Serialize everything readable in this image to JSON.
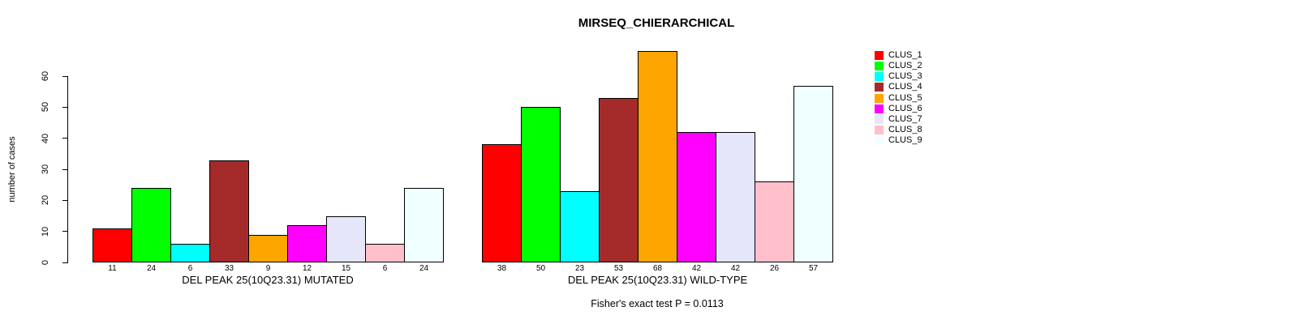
{
  "chart_data": {
    "type": "bar",
    "title": "MIRSEQ_CHIERARCHICAL",
    "ylabel": "number of cases",
    "yticks": [
      0,
      10,
      20,
      30,
      40,
      50,
      60
    ],
    "ylim": [
      0,
      69
    ],
    "grid": false,
    "legend_position": "right",
    "legend": [
      "CLUS_1",
      "CLUS_2",
      "CLUS_3",
      "CLUS_4",
      "CLUS_5",
      "CLUS_6",
      "CLUS_7",
      "CLUS_8",
      "CLUS_9"
    ],
    "colors": [
      "#FF0000",
      "#00FF00",
      "#00FFFF",
      "#A52A2A",
      "#FFA500",
      "#FF00FF",
      "#E6E6FA",
      "#FFC0CB",
      "#F0FFFF"
    ],
    "groups": [
      {
        "label": "DEL PEAK 25(10Q23.31) MUTATED",
        "values": [
          11,
          24,
          6,
          33,
          9,
          12,
          15,
          6,
          24
        ]
      },
      {
        "label": "DEL PEAK 25(10Q23.31) WILD-TYPE",
        "values": [
          38,
          50,
          23,
          53,
          68,
          42,
          42,
          26,
          57
        ]
      }
    ],
    "annotation": "Fisher's exact test P = 0.0113"
  }
}
